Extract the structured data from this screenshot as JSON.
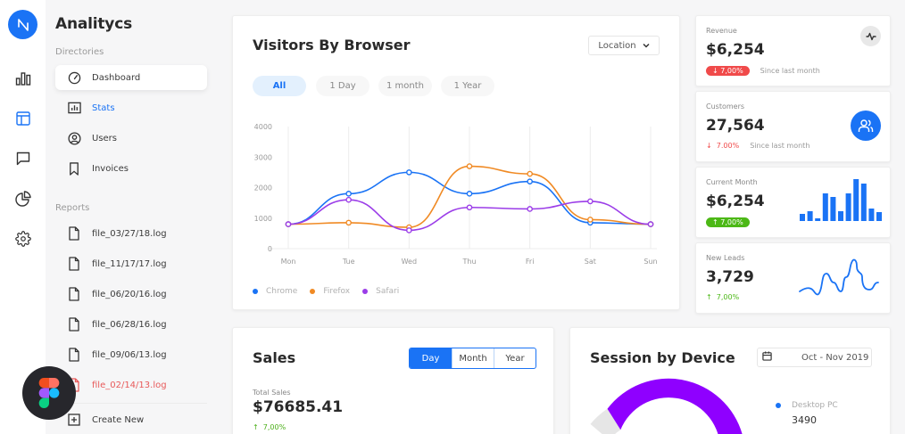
{
  "rail": {
    "logo_icon": "brand-logo-icon",
    "items": [
      {
        "icon": "bar-chart-icon",
        "active": false
      },
      {
        "icon": "layout-icon",
        "active": true
      },
      {
        "icon": "message-icon",
        "active": false
      },
      {
        "icon": "pie-chart-icon",
        "active": false
      },
      {
        "icon": "settings-icon",
        "active": false
      }
    ]
  },
  "nav": {
    "title": "Analitycs",
    "directories_label": "Directories",
    "directories": [
      {
        "label": "Dashboard",
        "icon": "gauge-icon",
        "state": "active"
      },
      {
        "label": "Stats",
        "icon": "stats-icon",
        "state": "highlight"
      },
      {
        "label": "Users",
        "icon": "user-circle-icon",
        "state": ""
      },
      {
        "label": "Invoices",
        "icon": "bookmark-icon",
        "state": ""
      }
    ],
    "reports_label": "Reports",
    "reports": [
      {
        "label": "file_03/27/18.log",
        "state": ""
      },
      {
        "label": "file_11/17/17.log",
        "state": ""
      },
      {
        "label": "file_06/20/16.log",
        "state": ""
      },
      {
        "label": "file_06/28/16.log",
        "state": ""
      },
      {
        "label": "file_09/06/13.log",
        "state": ""
      },
      {
        "label": "file_02/14/13.log",
        "state": "error"
      }
    ],
    "create_new": "Create New"
  },
  "visitors": {
    "title": "Visitors By Browser",
    "dropdown": "Location",
    "filters": [
      "All",
      "1 Day",
      "1 month",
      "1 Year"
    ],
    "active_filter": "All"
  },
  "chart_data": {
    "type": "line",
    "title": "Visitors By Browser",
    "categories": [
      "Mon",
      "Tue",
      "Wed",
      "Thu",
      "Fri",
      "Sat",
      "Sun"
    ],
    "yticks": [
      0,
      1000,
      2000,
      3000,
      4000
    ],
    "ylim": [
      0,
      4000
    ],
    "grid": "vertical",
    "legend_position": "bottom-left",
    "series": [
      {
        "name": "Chrome",
        "color": "#1a73f5",
        "values": [
          800,
          1800,
          2500,
          1800,
          2200,
          850,
          800
        ]
      },
      {
        "name": "Firefox",
        "color": "#f08a24",
        "values": [
          800,
          850,
          700,
          2700,
          2450,
          950,
          800
        ]
      },
      {
        "name": "Safari",
        "color": "#9b3de8",
        "values": [
          800,
          1600,
          600,
          1350,
          1300,
          1550,
          800
        ]
      }
    ]
  },
  "stats": [
    {
      "label": "Revenue",
      "value": "$6,254",
      "change": "7,00%",
      "direction": "down",
      "style": "badge",
      "badge_color": "#f04a4a",
      "since": "Since last month",
      "icon": "activity-icon"
    },
    {
      "label": "Customers",
      "value": "27,564",
      "change": "7.00%",
      "direction": "down",
      "style": "text",
      "text_color": "#f04a4a",
      "since": "Since last month",
      "icon": "users-icon"
    },
    {
      "label": "Current Month",
      "value": "$6,254",
      "change": "7,00%",
      "direction": "up",
      "style": "badge",
      "badge_color": "#4cb816",
      "since": "",
      "icon": "mini-bar-chart"
    },
    {
      "label": "New Leads",
      "value": "3,729",
      "change": "7,00%",
      "direction": "up",
      "style": "text",
      "text_color": "#4cb816",
      "since": "",
      "icon": "sparkline"
    }
  ],
  "mini_bars": [
    8,
    11,
    3,
    31,
    27,
    11,
    31,
    47,
    42,
    14,
    10
  ],
  "sales": {
    "title": "Sales",
    "segments": [
      "Day",
      "Month",
      "Year"
    ],
    "active_segment": "Day",
    "total_label": "Total Sales",
    "total_value": "$76685.41",
    "change": "7,00%"
  },
  "session": {
    "title": "Session by Device",
    "date_range": "Oct - Nov 2019",
    "legend": [
      {
        "label": "Desktop PC",
        "value": "3490",
        "color": "#1a73f5"
      }
    ],
    "donut_colors": {
      "primary": "#8f00ff",
      "secondary": "#e6e6e6",
      "accent": "#1a73f5"
    }
  }
}
